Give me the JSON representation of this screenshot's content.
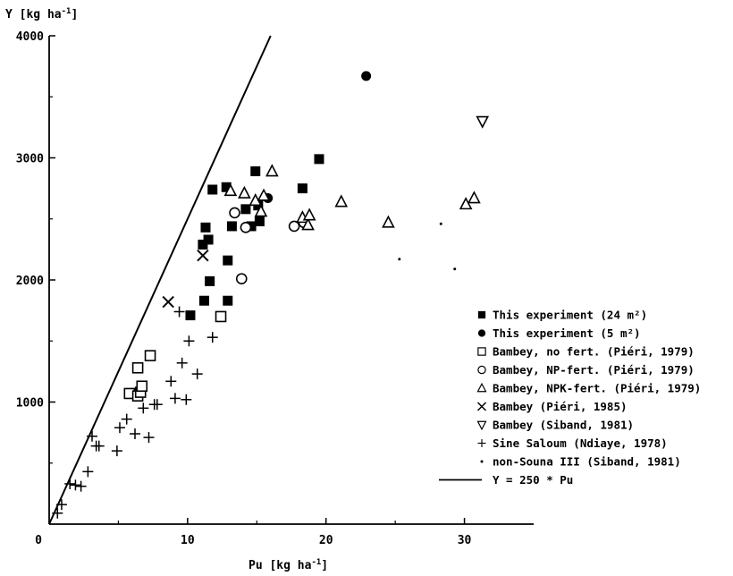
{
  "chart_data": {
    "type": "scatter",
    "xlabel": "Pu [kg ha",
    "xlabel_sup": "-1",
    "xlabel_end": "]",
    "ylabel": "Y [kg ha",
    "ylabel_sup": "-1",
    "ylabel_end": "]",
    "xlim": [
      0,
      35
    ],
    "ylim": [
      0,
      4000
    ],
    "x_ticks": [
      0,
      10,
      20,
      30
    ],
    "x_tick_labels": [
      "0",
      "10",
      "20",
      "30"
    ],
    "y_ticks": [
      1000,
      2000,
      3000,
      4000
    ],
    "y_tick_labels": [
      "1000",
      "2000",
      "3000",
      "4000"
    ],
    "legend_position": "right",
    "series": [
      {
        "name": "This experiment (24 m²)",
        "marker": "filled-square",
        "points": [
          [
            10.2,
            1710
          ],
          [
            11.2,
            1830
          ],
          [
            11.6,
            1990
          ],
          [
            11.1,
            2290
          ],
          [
            11.5,
            2330
          ],
          [
            11.3,
            2430
          ],
          [
            11.8,
            2740
          ],
          [
            12.8,
            2760
          ],
          [
            12.9,
            2160
          ],
          [
            13.2,
            2440
          ],
          [
            12.9,
            1830
          ],
          [
            14.2,
            2580
          ],
          [
            14.6,
            2440
          ],
          [
            14.9,
            2890
          ],
          [
            15.2,
            2480
          ],
          [
            15.1,
            2610
          ],
          [
            18.3,
            2750
          ],
          [
            19.5,
            2990
          ]
        ]
      },
      {
        "name": "This experiment (5 m²)",
        "marker": "filled-circle",
        "points": [
          [
            15.8,
            2670
          ],
          [
            22.9,
            3670
          ]
        ]
      },
      {
        "name": "Bambey, no fert. (Piéri, 1979)",
        "marker": "open-square",
        "points": [
          [
            5.8,
            1070
          ],
          [
            6.4,
            1050
          ],
          [
            6.6,
            1080
          ],
          [
            6.7,
            1130
          ],
          [
            6.4,
            1280
          ],
          [
            7.3,
            1380
          ],
          [
            12.4,
            1700
          ]
        ]
      },
      {
        "name": "Bambey, NP-fert. (Piéri, 1979)",
        "marker": "open-circle",
        "points": [
          [
            13.4,
            2550
          ],
          [
            14.2,
            2430
          ],
          [
            13.9,
            2010
          ],
          [
            17.7,
            2440
          ],
          [
            18.4,
            2470
          ]
        ]
      },
      {
        "name": "Bambey, NPK-fert. (Piéri, 1979)",
        "marker": "open-triangle",
        "points": [
          [
            13.1,
            2730
          ],
          [
            14.1,
            2710
          ],
          [
            14.9,
            2650
          ],
          [
            15.5,
            2690
          ],
          [
            16.1,
            2890
          ],
          [
            15.3,
            2560
          ],
          [
            18.3,
            2510
          ],
          [
            18.7,
            2450
          ],
          [
            18.8,
            2530
          ],
          [
            21.1,
            2640
          ],
          [
            24.5,
            2470
          ],
          [
            30.1,
            2620
          ],
          [
            30.7,
            2670
          ]
        ]
      },
      {
        "name": "Bambey (Piéri, 1985)",
        "marker": "x",
        "points": [
          [
            8.6,
            1820
          ],
          [
            11.1,
            2200
          ]
        ]
      },
      {
        "name": "Bambey (Siband, 1981)",
        "marker": "open-triangle-down",
        "points": [
          [
            31.3,
            3300
          ]
        ]
      },
      {
        "name": "Sine Saloum (Ndiaye, 1978)",
        "marker": "plus",
        "points": [
          [
            0.6,
            90
          ],
          [
            0.9,
            160
          ],
          [
            1.5,
            330
          ],
          [
            1.9,
            320
          ],
          [
            2.3,
            310
          ],
          [
            2.8,
            430
          ],
          [
            3.1,
            720
          ],
          [
            3.4,
            640
          ],
          [
            3.6,
            640
          ],
          [
            4.9,
            600
          ],
          [
            5.1,
            790
          ],
          [
            5.6,
            860
          ],
          [
            6.2,
            740
          ],
          [
            6.8,
            950
          ],
          [
            7.2,
            710
          ],
          [
            7.6,
            980
          ],
          [
            7.8,
            980
          ],
          [
            8.8,
            1170
          ],
          [
            9.1,
            1030
          ],
          [
            9.4,
            1740
          ],
          [
            9.6,
            1320
          ],
          [
            9.9,
            1020
          ],
          [
            10.1,
            1500
          ],
          [
            10.7,
            1230
          ],
          [
            11.8,
            1530
          ]
        ]
      },
      {
        "name": "non-Souna III (Siband, 1981)",
        "marker": "dot",
        "points": [
          [
            25.3,
            2170
          ],
          [
            28.3,
            2460
          ],
          [
            29.3,
            2090
          ]
        ]
      },
      {
        "name": "Y = 250 * Pu",
        "marker": "line",
        "points": [
          [
            0,
            0
          ],
          [
            16,
            4000
          ]
        ]
      }
    ]
  }
}
